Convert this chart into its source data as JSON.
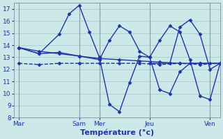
{
  "title": "Température (°c)",
  "bg_color": "#cce8e8",
  "grid_color": "#b0d0d0",
  "line_color": "#2233aa",
  "axis_label_color": "#2233aa",
  "x_tick_labels": [
    "Mar",
    "Sam",
    "Mer",
    "Jeu",
    "Ven"
  ],
  "x_tick_positions": [
    0,
    6,
    8,
    13,
    19
  ],
  "xlim": [
    -0.5,
    20
  ],
  "ylim": [
    8,
    17.5
  ],
  "yticks": [
    8,
    9,
    10,
    11,
    12,
    13,
    14,
    15,
    16,
    17
  ],
  "vlines": [
    0,
    6,
    8,
    13,
    19
  ],
  "series": [
    {
      "x": [
        0,
        2,
        4,
        6,
        8,
        10,
        12,
        14,
        16,
        18,
        20
      ],
      "y": [
        13.8,
        13.5,
        13.3,
        13.1,
        12.9,
        12.8,
        12.7,
        12.6,
        12.5,
        12.5,
        12.5
      ],
      "linestyle": "-",
      "lw": 1.0
    },
    {
      "x": [
        0,
        2,
        4,
        6,
        8,
        10,
        12,
        14,
        16,
        18,
        20
      ],
      "y": [
        12.5,
        12.4,
        12.5,
        12.5,
        12.5,
        12.5,
        12.5,
        12.4,
        12.5,
        12.4,
        12.5
      ],
      "linestyle": "--",
      "lw": 1.0
    },
    {
      "x": [
        0,
        2,
        4,
        5,
        6,
        7,
        8,
        9,
        10,
        11,
        12,
        13,
        14,
        15,
        16,
        17,
        18,
        19,
        20
      ],
      "y": [
        13.8,
        13.3,
        14.9,
        16.6,
        17.3,
        15.1,
        13.0,
        9.1,
        8.5,
        10.9,
        13.1,
        13.0,
        14.4,
        15.6,
        15.1,
        12.8,
        9.8,
        9.5,
        12.5
      ],
      "linestyle": "-",
      "lw": 1.0
    },
    {
      "x": [
        0,
        2,
        4,
        6,
        8,
        9,
        10,
        11,
        12,
        13,
        14,
        15,
        16,
        17,
        18,
        19,
        20
      ],
      "y": [
        13.8,
        13.3,
        13.4,
        13.1,
        12.8,
        14.4,
        15.6,
        15.1,
        13.5,
        13.0,
        10.3,
        10.0,
        11.8,
        12.5,
        12.5,
        12.5,
        12.5
      ],
      "linestyle": "-",
      "lw": 1.0
    },
    {
      "x": [
        13,
        15,
        16,
        17,
        18,
        19,
        20
      ],
      "y": [
        12.5,
        12.5,
        15.5,
        16.1,
        14.9,
        12.0,
        12.5
      ],
      "linestyle": "-",
      "lw": 1.0
    }
  ]
}
